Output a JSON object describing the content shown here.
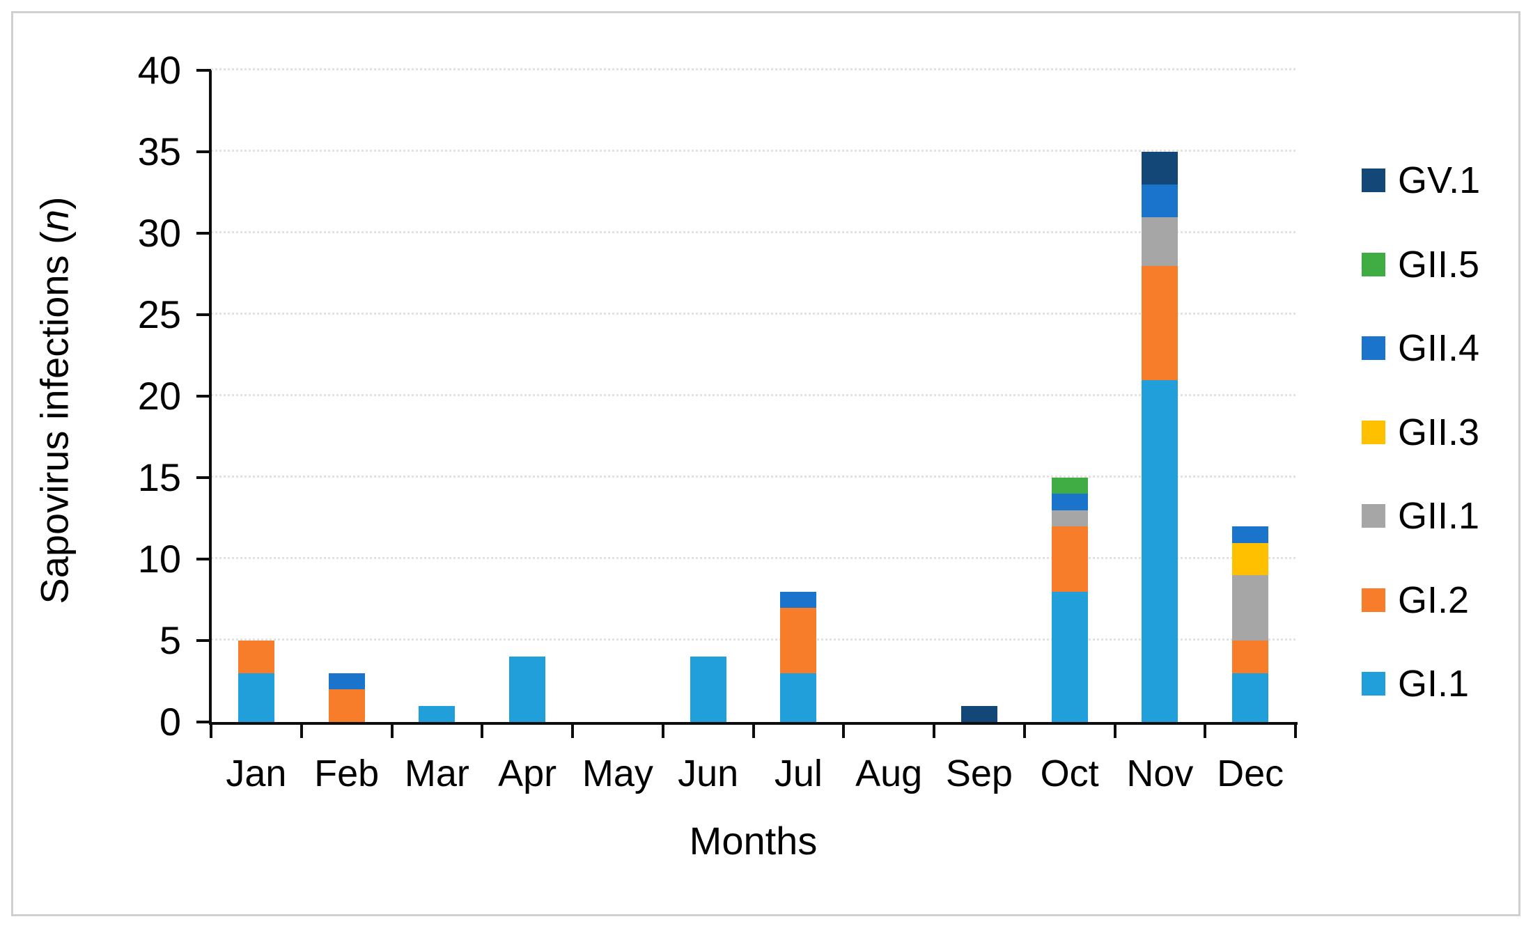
{
  "figure": {
    "border_color": "#cfcfcf",
    "background": "#ffffff",
    "axis_color": "#0d0d0d",
    "gridline_color": "#e2e2e2"
  },
  "chart_data": {
    "type": "bar",
    "stacked": true,
    "title": "",
    "xlabel": "Months",
    "ylabel": "Sapovirus infections (n)",
    "ylabel_parts": {
      "prefix": "Sapovirus infections (",
      "italic": "n",
      "suffix": ")"
    },
    "ylim": [
      0,
      40
    ],
    "yticks": [
      0,
      5,
      10,
      15,
      20,
      25,
      30,
      35,
      40
    ],
    "grid": "horizontal-dotted",
    "legend_position": "right",
    "categories": [
      "Jan",
      "Feb",
      "Mar",
      "Apr",
      "May",
      "Jun",
      "Jul",
      "Aug",
      "Sep",
      "Oct",
      "Nov",
      "Dec"
    ],
    "series": [
      {
        "name": "GI.1",
        "color": "#219fdb",
        "values": [
          3,
          0,
          1,
          4,
          0,
          4,
          3,
          0,
          0,
          8,
          21,
          3
        ]
      },
      {
        "name": "GI.2",
        "color": "#f87d2a",
        "values": [
          2,
          2,
          0,
          0,
          0,
          0,
          4,
          0,
          0,
          4,
          7,
          2
        ]
      },
      {
        "name": "GII.1",
        "color": "#a6a6a6",
        "values": [
          0,
          0,
          0,
          0,
          0,
          0,
          0,
          0,
          0,
          1,
          3,
          4
        ]
      },
      {
        "name": "GII.3",
        "color": "#ffc000",
        "values": [
          0,
          0,
          0,
          0,
          0,
          0,
          0,
          0,
          0,
          0,
          0,
          2
        ]
      },
      {
        "name": "GII.4",
        "color": "#1b74cb",
        "values": [
          0,
          1,
          0,
          0,
          0,
          0,
          1,
          0,
          0,
          1,
          2,
          1
        ]
      },
      {
        "name": "GII.5",
        "color": "#3fad44",
        "values": [
          0,
          0,
          0,
          0,
          0,
          0,
          0,
          0,
          0,
          1,
          0,
          0
        ]
      },
      {
        "name": "GV.1",
        "color": "#134778",
        "values": [
          0,
          0,
          0,
          0,
          0,
          0,
          0,
          0,
          1,
          0,
          2,
          0
        ]
      }
    ],
    "monthly_totals": [
      5,
      3,
      1,
      4,
      0,
      4,
      8,
      0,
      1,
      15,
      35,
      12
    ],
    "legend_order_top_to_bottom": [
      "GV.1",
      "GII.5",
      "GII.4",
      "GII.3",
      "GII.1",
      "GI.2",
      "GI.1"
    ]
  }
}
